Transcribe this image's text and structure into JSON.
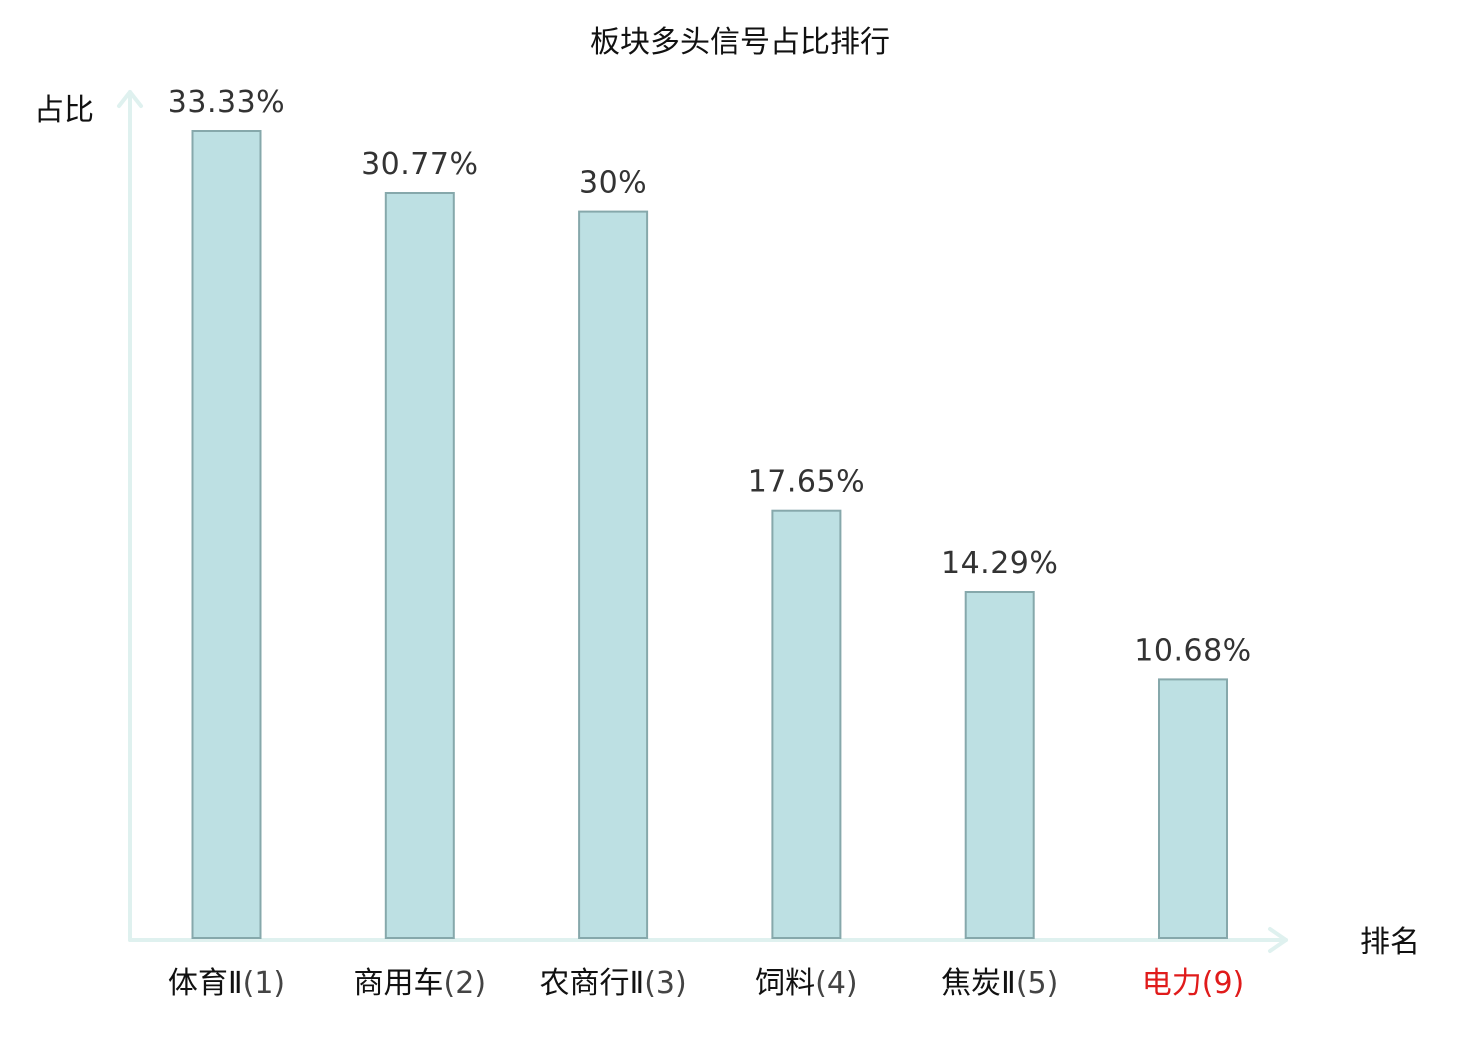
{
  "chart_data": {
    "type": "bar",
    "title": "板块多头信号占比排行",
    "xlabel": "排名",
    "ylabel": "占比",
    "categories": [
      "体育Ⅱ",
      "商用车",
      "农商行Ⅱ",
      "饲料",
      "焦炭Ⅱ",
      "电力"
    ],
    "ranks": [
      "(1)",
      "(2)",
      "(3)",
      "(4)",
      "(5)",
      "(9)"
    ],
    "values": [
      33.33,
      30.77,
      30,
      17.65,
      14.29,
      10.68
    ],
    "value_labels": [
      "33.33%",
      "30.77%",
      "30%",
      "17.65%",
      "14.29%",
      "10.68%"
    ],
    "highlight_index": 5,
    "ylim": [
      0,
      33.33
    ],
    "grid": false,
    "colors": {
      "bar_fill": "#bde0e3",
      "bar_stroke": "#86a8ab",
      "axis": "#dff1ef",
      "highlight": "#e01b1b",
      "text": "#111111",
      "value_text": "#333333"
    }
  }
}
